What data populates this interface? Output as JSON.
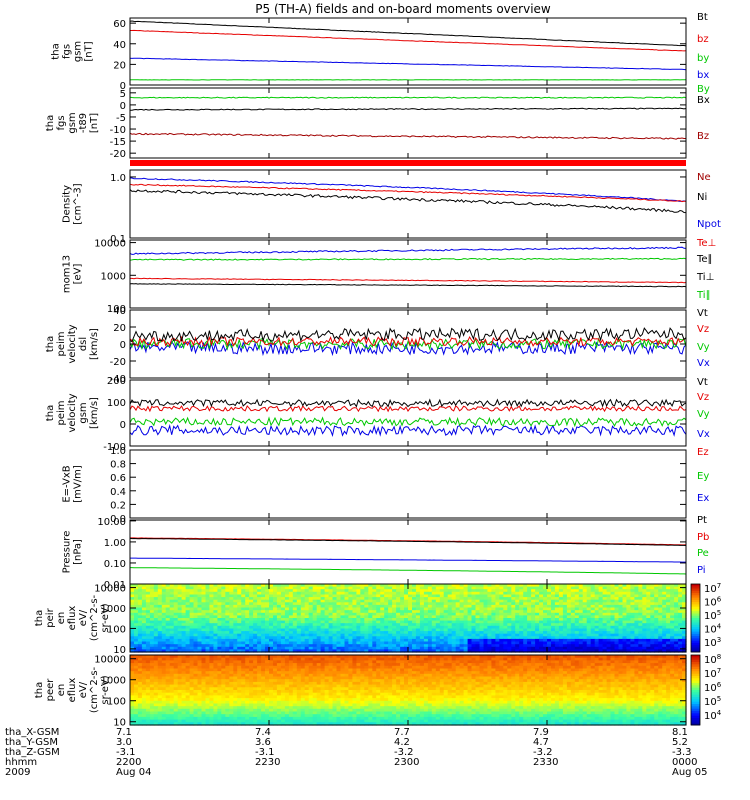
{
  "title": "P5 (TH-A) fields and on-board moments overview",
  "colors": {
    "black": "#000000",
    "red": "#e60000",
    "green": "#00c800",
    "blue": "#0000e6",
    "darkred": "#a00000",
    "axis": "#000000"
  },
  "chart_data": [
    {
      "type": "line",
      "ylabel": [
        "tha",
        "fgs",
        "gsm",
        "[nT]"
      ],
      "ylim": [
        0,
        65
      ],
      "yticks": [
        "60",
        "40",
        "20",
        "0"
      ],
      "ytick_values": [
        60,
        40,
        20,
        0
      ],
      "legend": [
        "Bt",
        "bz",
        "by",
        "bx"
      ],
      "legend_colors": [
        "#000000",
        "#e60000",
        "#00c800",
        "#0000e6"
      ],
      "series": [
        {
          "name": "Bt",
          "color": "#000000",
          "start": 62,
          "end": 38,
          "noise": 0.2
        },
        {
          "name": "bz",
          "color": "#e60000",
          "start": 53,
          "end": 33,
          "noise": 0.2
        },
        {
          "name": "by",
          "color": "#0000e6",
          "start": 26,
          "end": 15,
          "noise": 0.2
        },
        {
          "name": "bx",
          "color": "#00c800",
          "start": 5,
          "end": 5,
          "noise": 0.15
        }
      ]
    },
    {
      "type": "line",
      "ylabel": [
        "tha",
        "fgs",
        "gsm",
        "-t89",
        "[nT]"
      ],
      "ylim": [
        -22,
        7
      ],
      "yticks": [
        "5",
        "0",
        "-5",
        "-10",
        "-15",
        "-20"
      ],
      "ytick_values": [
        5,
        0,
        -5,
        -10,
        -15,
        -20
      ],
      "legend": [
        "By",
        "Bx",
        "",
        "Bz"
      ],
      "legend_colors": [
        "#00c800",
        "#000000",
        "#000000",
        "#a00000"
      ],
      "series": [
        {
          "name": "By",
          "color": "#00c800",
          "start": 3,
          "end": 3,
          "noise": 0.2
        },
        {
          "name": "Bx",
          "color": "#000000",
          "start": -2,
          "end": -1.5,
          "noise": 0.2
        },
        {
          "name": "Bz",
          "color": "#a00000",
          "start": -12,
          "end": -14,
          "noise": 0.3
        }
      ]
    },
    {
      "type": "bar",
      "ylabel": [],
      "legend": []
    },
    {
      "type": "line",
      "ylabel": [
        "Density",
        "[cm^-3]"
      ],
      "log": true,
      "ylim": [
        0.1,
        1.3
      ],
      "yticks": [
        "1.0",
        "0.1"
      ],
      "ytick_values": [
        1.0,
        0.1
      ],
      "legend": [
        "Ne",
        "Ni",
        "Npot"
      ],
      "legend_colors": [
        "#a00000",
        "#000000",
        "#0000e6"
      ],
      "series": [
        {
          "name": "Npot",
          "color": "#0000e6",
          "start": 0.95,
          "end": 0.4,
          "noise": 0.02
        },
        {
          "name": "Ne",
          "color": "#e60000",
          "start": 0.75,
          "end": 0.4,
          "noise": 0.02
        },
        {
          "name": "Ni",
          "color": "#000000",
          "start": 0.6,
          "end": 0.27,
          "noise": 0.05
        }
      ]
    },
    {
      "type": "line",
      "ylabel": [
        "mom13",
        "[eV]"
      ],
      "log": true,
      "ylim": [
        100,
        12000
      ],
      "yticks": [
        "10000",
        "1000",
        "100"
      ],
      "ytick_values": [
        10000,
        1000,
        100
      ],
      "legend": [
        "Te⊥",
        "Te∥",
        "Ti⊥",
        "Ti∥"
      ],
      "legend_colors": [
        "#e60000",
        "#000000",
        "#000000",
        "#00c800"
      ],
      "series": [
        {
          "name": "Te∥",
          "color": "#0000e6",
          "start": 4500,
          "end": 7000,
          "noise": 0.05
        },
        {
          "name": "Ti∥",
          "color": "#00c800",
          "start": 3000,
          "end": 3200,
          "noise": 0.04
        },
        {
          "name": "Te⊥",
          "color": "#e60000",
          "start": 800,
          "end": 600,
          "noise": 0.02
        },
        {
          "name": "Ti⊥",
          "color": "#000000",
          "start": 550,
          "end": 450,
          "noise": 0.02
        }
      ]
    },
    {
      "type": "line",
      "ylabel": [
        "tha",
        "peim",
        "velocity",
        "dsl",
        "[km/s]"
      ],
      "ylim": [
        -40,
        40
      ],
      "yticks": [
        "40",
        "20",
        "0",
        "-20",
        "-40"
      ],
      "ytick_values": [
        40,
        20,
        0,
        -20,
        -40
      ],
      "legend": [
        "Vt",
        "Vz",
        "Vy",
        "Vx"
      ],
      "legend_colors": [
        "#000000",
        "#e60000",
        "#00c800",
        "#0000e6"
      ],
      "series": [
        {
          "name": "Vx",
          "color": "#0000e6",
          "start": -5,
          "end": -5,
          "noise": 7
        },
        {
          "name": "Vy",
          "color": "#00c800",
          "start": 0,
          "end": 0,
          "noise": 6
        },
        {
          "name": "Vz",
          "color": "#e60000",
          "start": 3,
          "end": 3,
          "noise": 5
        },
        {
          "name": "Vt",
          "color": "#000000",
          "start": 10,
          "end": 12,
          "noise": 7
        }
      ]
    },
    {
      "type": "line",
      "ylabel": [
        "tha",
        "peim",
        "velocity",
        "gsm",
        "[km/s]"
      ],
      "ylim": [
        -100,
        200
      ],
      "yticks": [
        "200",
        "100",
        "0",
        "-100"
      ],
      "ytick_values": [
        200,
        100,
        0,
        -100
      ],
      "legend": [
        "Vt",
        "Vz",
        "Vy",
        "Vx"
      ],
      "legend_colors": [
        "#000000",
        "#e60000",
        "#00c800",
        "#0000e6"
      ],
      "series": [
        {
          "name": "Vx",
          "color": "#0000e6",
          "start": -30,
          "end": -30,
          "noise": 22
        },
        {
          "name": "Vy",
          "color": "#00c800",
          "start": 10,
          "end": 10,
          "noise": 18
        },
        {
          "name": "Vz",
          "color": "#e60000",
          "start": 70,
          "end": 70,
          "noise": 12
        },
        {
          "name": "Vt",
          "color": "#000000",
          "start": 95,
          "end": 95,
          "noise": 15
        }
      ]
    },
    {
      "type": "line",
      "ylabel": [
        "E=-VxB",
        "[mV/m]"
      ],
      "ylim": [
        0,
        1
      ],
      "yticks": [
        "1.0",
        "0.8",
        "0.6",
        "0.4",
        "0.2",
        "0.0"
      ],
      "ytick_values": [
        1,
        0.8,
        0.6,
        0.4,
        0.2,
        0
      ],
      "legend": [
        "Ez",
        "Ey",
        "Ex"
      ],
      "legend_colors": [
        "#e60000",
        "#00c800",
        "#0000e6"
      ],
      "series": []
    },
    {
      "type": "line",
      "ylabel": [
        "Pressure",
        "[nPa]"
      ],
      "log": true,
      "ylim": [
        0.01,
        11
      ],
      "yticks": [
        "10.00",
        "1.00",
        "0.10",
        "0.01"
      ],
      "ytick_values": [
        10,
        1,
        0.1,
        0.01
      ],
      "legend": [
        "Pt",
        "Pb",
        "Pe",
        "Pi"
      ],
      "legend_colors": [
        "#000000",
        "#e60000",
        "#00c800",
        "#0000e6"
      ],
      "series": [
        {
          "name": "Pb",
          "color": "#e60000",
          "start": 1.55,
          "end": 0.72,
          "noise": 0.01
        },
        {
          "name": "Pt",
          "color": "#000000",
          "start": 1.45,
          "end": 0.68,
          "noise": 0.01
        },
        {
          "name": "Pi",
          "color": "#0000e6",
          "start": 0.17,
          "end": 0.11,
          "noise": 0.003
        },
        {
          "name": "Pe",
          "color": "#00c800",
          "start": 0.06,
          "end": 0.03,
          "noise": 0.001
        }
      ]
    },
    {
      "type": "heatmap",
      "ylabel": [
        "tha",
        "peir",
        "en",
        "eflux",
        "eV/",
        "(cm^2-s-",
        "sr-eV)"
      ],
      "log": true,
      "ylim": [
        7,
        15000
      ],
      "yticks": [
        "10000",
        "1000",
        "100",
        "10"
      ],
      "ytick_values": [
        10000,
        1000,
        100,
        10
      ],
      "colorbar_ticks": [
        "10^7",
        "10^6",
        "10^5",
        "10^4",
        "10^3"
      ],
      "colorbar_labels": [
        "7",
        "6",
        "5",
        "4",
        "3"
      ]
    },
    {
      "type": "heatmap",
      "ylabel": [
        "tha",
        "peer",
        "en",
        "eflux",
        "eV/",
        "(cm^2-s-",
        "sr-eV)"
      ],
      "log": true,
      "ylim": [
        7,
        15000
      ],
      "yticks": [
        "10000",
        "1000",
        "100",
        "10"
      ],
      "ytick_values": [
        10000,
        1000,
        100,
        10
      ],
      "colorbar_ticks": [
        "10^8",
        "10^7",
        "10^6",
        "10^5",
        "10^4"
      ],
      "colorbar_labels": [
        "8",
        "7",
        "6",
        "5",
        "4"
      ]
    }
  ],
  "footer": {
    "row_labels": [
      "tha_X-GSM",
      "tha_Y-GSM",
      "tha_Z-GSM",
      "hhmm",
      "2009"
    ],
    "columns": [
      {
        "x": "7.1",
        "y": "3.0",
        "z": "-3.1",
        "hhmm": "2200",
        "date": "Aug 04"
      },
      {
        "x": "7.4",
        "y": "3.6",
        "z": "-3.1",
        "hhmm": "2230",
        "date": ""
      },
      {
        "x": "7.7",
        "y": "4.2",
        "z": "-3.2",
        "hhmm": "2300",
        "date": ""
      },
      {
        "x": "7.9",
        "y": "4.7",
        "z": "-3.2",
        "hhmm": "2330",
        "date": ""
      },
      {
        "x": "8.1",
        "y": "5.2",
        "z": "-3.3",
        "hhmm": "0000",
        "date": "Aug 05"
      }
    ]
  }
}
